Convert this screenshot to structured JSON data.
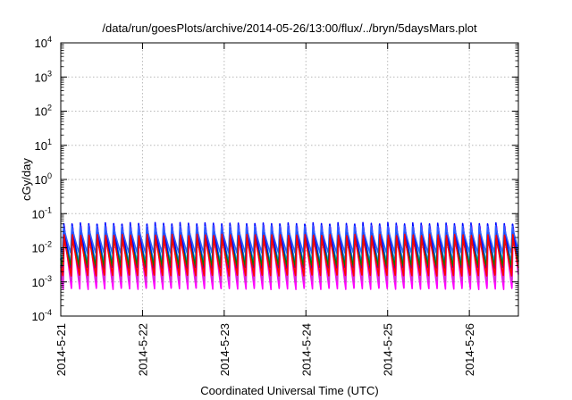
{
  "chart_data": {
    "type": "line",
    "title": "/data/run/goesPlots/archive/2014-05-26/13:00/flux/../bryn/5daysMars.plot",
    "xlabel": "Coordinated Universal Time (UTC)",
    "ylabel": "cGy/day",
    "yscale": "log",
    "ylim": [
      0.0001,
      10000
    ],
    "xlim": [
      0,
      5.6
    ],
    "grid": true,
    "y_ticks": [
      {
        "value": 0.0001,
        "base": "10",
        "exp": "-4"
      },
      {
        "value": 0.001,
        "base": "10",
        "exp": "-3"
      },
      {
        "value": 0.01,
        "base": "10",
        "exp": "-2"
      },
      {
        "value": 0.1,
        "base": "10",
        "exp": "-1"
      },
      {
        "value": 1,
        "base": "10",
        "exp": "0"
      },
      {
        "value": 10,
        "base": "10",
        "exp": "1"
      },
      {
        "value": 100,
        "base": "10",
        "exp": "2"
      },
      {
        "value": 1000,
        "base": "10",
        "exp": "3"
      },
      {
        "value": 10000,
        "base": "10",
        "exp": "4"
      }
    ],
    "x_ticks": [
      {
        "value": 0,
        "label": "2014-5-21"
      },
      {
        "value": 1,
        "label": "2014-5-22"
      },
      {
        "value": 2,
        "label": "2014-5-23"
      },
      {
        "value": 3,
        "label": "2014-5-24"
      },
      {
        "value": 4,
        "label": "2014-5-25"
      },
      {
        "value": 5,
        "label": "2014-5-26"
      }
    ],
    "cycle": {
      "period_days": 0.1017,
      "phase_days": 0.02,
      "rise_fraction": 0.14
    },
    "series": [
      {
        "color": "#ff00ff",
        "peak": 0.045,
        "trough": 0.0006,
        "lag": 0.01
      },
      {
        "color": "#cc33cc",
        "peak": 0.04,
        "trough": 0.001,
        "lag": 0.008
      },
      {
        "color": "#00c8c8",
        "peak": 0.038,
        "trough": 0.0035,
        "lag": 0.005
      },
      {
        "color": "#2ab5b5",
        "peak": 0.03,
        "trough": 0.0025,
        "lag": 0.004
      },
      {
        "color": "#0000ff",
        "peak": 0.055,
        "trough": 0.0025,
        "lag": 0.002
      },
      {
        "color": "#3060ff",
        "peak": 0.045,
        "trough": 0.007,
        "lag": 0.0
      },
      {
        "color": "#008000",
        "peak": 0.02,
        "trough": 0.003,
        "lag": 0.003
      },
      {
        "color": "#ff0000",
        "peak": 0.025,
        "trough": 0.0015,
        "lag": 0.006
      }
    ]
  }
}
